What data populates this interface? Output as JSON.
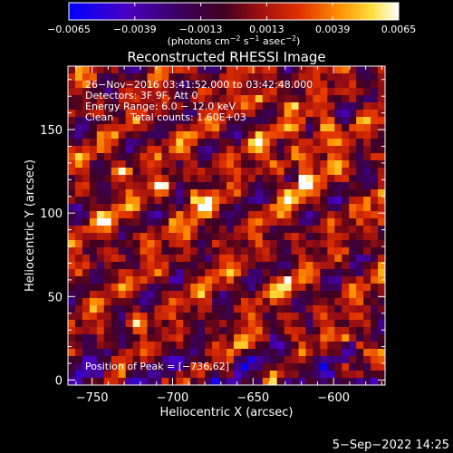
{
  "chart_data": {
    "type": "heatmap",
    "title": "Reconstructed RHESSI Image",
    "xlabel": "Heliocentric X (arcsec)",
    "ylabel": "Heliocentric Y (arcsec)",
    "xlim": [
      -765,
      -568
    ],
    "ylim": [
      -3,
      188
    ],
    "x_ticks": [
      -750,
      -700,
      -650,
      -600
    ],
    "x_tick_labels": [
      "−750",
      "−700",
      "−650",
      "−600"
    ],
    "y_ticks": [
      0,
      50,
      100,
      150
    ],
    "y_tick_labels": [
      "0",
      "50",
      "100",
      "150"
    ],
    "colorbar": {
      "min": -0.0065,
      "max": 0.0065,
      "ticks": [
        -0.0065,
        -0.0039,
        -0.0013,
        0.0013,
        0.0039,
        0.0065
      ],
      "tick_labels": [
        "−0.0065",
        "−0.0039",
        "−0.0013",
        "0.0013",
        "0.0039",
        "0.0065"
      ],
      "units_parts": [
        "(photons cm",
        "−2",
        " s",
        "−1",
        " asec",
        "−2",
        ")"
      ],
      "colormap": [
        "#0000ff",
        "#5a00a0",
        "#2a0040",
        "#8a0018",
        "#d42000",
        "#ff8000",
        "#ffd000",
        "#ffffff"
      ]
    },
    "annotations": {
      "time_range": "26−Nov−2016 03:41:52.000 to 03:42:48.000",
      "detectors": "Detectors: 3F 9F, Att 0",
      "energy_range": "Energy Range: 6.0 − 12.0 keV",
      "method": "Clean",
      "total_counts": "Total counts: 1.60E+03",
      "peak": "Position of Peak = [−736,62]"
    },
    "peak_position": [
      -736,
      62
    ],
    "pattern_note": "noisy clean-image map with quasi-periodic bright ring knots"
  },
  "footer": {
    "date": "5−Sep−2022 14:25"
  }
}
